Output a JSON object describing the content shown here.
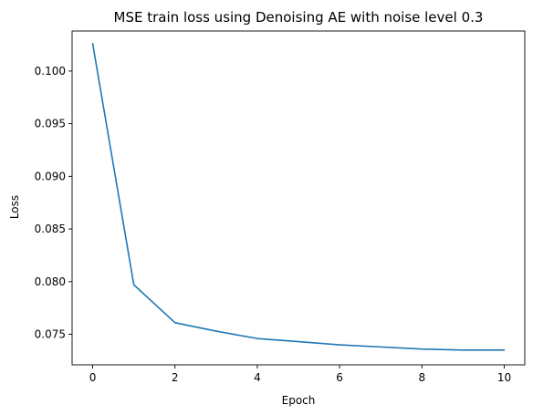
{
  "chart_data": {
    "type": "line",
    "title": "MSE train loss using Denoising AE with noise level 0.3",
    "xlabel": "Epoch",
    "ylabel": "Loss",
    "xlim": [
      -0.5,
      10.5
    ],
    "ylim": [
      0.0721,
      0.1038
    ],
    "xticks": [
      0,
      2,
      4,
      6,
      8,
      10
    ],
    "xtick_labels": [
      "0",
      "2",
      "4",
      "6",
      "8",
      "10"
    ],
    "yticks": [
      0.075,
      0.08,
      0.085,
      0.09,
      0.095,
      0.1
    ],
    "ytick_labels": [
      "0.075",
      "0.080",
      "0.085",
      "0.090",
      "0.095",
      "0.100"
    ],
    "grid": false,
    "series": [
      {
        "color": "#1f77b4",
        "x": [
          0,
          1,
          2,
          3,
          4,
          5,
          6,
          7,
          8,
          9,
          10
        ],
        "y": [
          0.1026,
          0.0797,
          0.0761,
          0.0753,
          0.0746,
          0.0743,
          0.074,
          0.0738,
          0.0736,
          0.0735,
          0.0735
        ]
      }
    ]
  }
}
